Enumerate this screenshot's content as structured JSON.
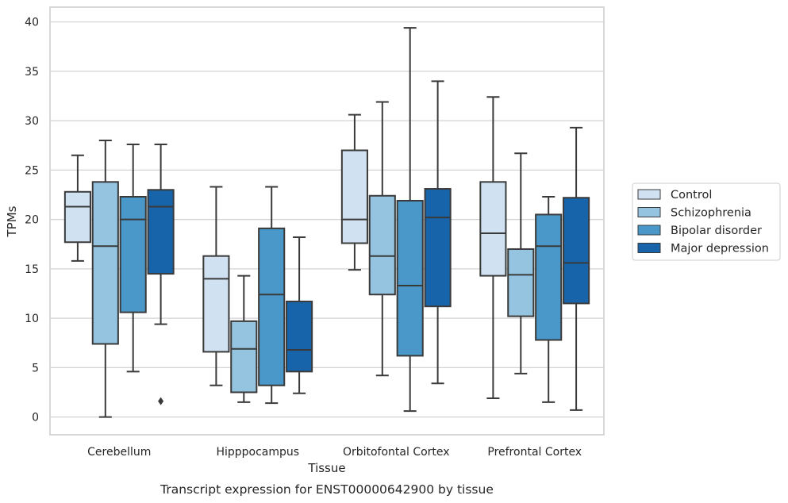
{
  "chart_data": {
    "type": "box",
    "caption": "Transcript expression for ENST00000642900 by tissue",
    "xlabel": "Tissue",
    "ylabel": "TPMs",
    "ylim": [
      -1.8,
      41.5
    ],
    "yticks": [
      0,
      5,
      10,
      15,
      20,
      25,
      30,
      35,
      40
    ],
    "grid": true,
    "legend_position": "right",
    "categories": [
      "Cerebellum",
      "Hipppocampus",
      "Orbitofontal Cortex",
      "Prefrontal Cortex"
    ],
    "series": [
      {
        "name": "Control",
        "color": "#d0e1f2",
        "boxes": [
          {
            "whisker_low": 15.8,
            "q1": 17.7,
            "median": 21.3,
            "q3": 22.8,
            "whisker_high": 26.5,
            "outliers": []
          },
          {
            "whisker_low": 3.2,
            "q1": 6.6,
            "median": 14.0,
            "q3": 16.3,
            "whisker_high": 23.3,
            "outliers": []
          },
          {
            "whisker_low": 14.9,
            "q1": 17.6,
            "median": 20.0,
            "q3": 27.0,
            "whisker_high": 30.6,
            "outliers": []
          },
          {
            "whisker_low": 1.9,
            "q1": 14.3,
            "median": 18.6,
            "q3": 23.8,
            "whisker_high": 32.4,
            "outliers": []
          }
        ]
      },
      {
        "name": "Schizophrenia",
        "color": "#94c4df",
        "boxes": [
          {
            "whisker_low": 0.0,
            "q1": 7.4,
            "median": 17.3,
            "q3": 23.8,
            "whisker_high": 28.0,
            "outliers": []
          },
          {
            "whisker_low": 1.5,
            "q1": 2.5,
            "median": 6.9,
            "q3": 9.7,
            "whisker_high": 14.3,
            "outliers": []
          },
          {
            "whisker_low": 4.2,
            "q1": 12.4,
            "median": 16.3,
            "q3": 22.4,
            "whisker_high": 31.9,
            "outliers": []
          },
          {
            "whisker_low": 4.4,
            "q1": 10.2,
            "median": 14.4,
            "q3": 17.0,
            "whisker_high": 26.7,
            "outliers": []
          }
        ]
      },
      {
        "name": "Bipolar disorder",
        "color": "#4a98c9",
        "boxes": [
          {
            "whisker_low": 4.6,
            "q1": 10.6,
            "median": 20.0,
            "q3": 22.3,
            "whisker_high": 27.6,
            "outliers": []
          },
          {
            "whisker_low": 1.4,
            "q1": 3.2,
            "median": 12.4,
            "q3": 19.1,
            "whisker_high": 23.3,
            "outliers": []
          },
          {
            "whisker_low": 0.6,
            "q1": 6.2,
            "median": 13.3,
            "q3": 21.9,
            "whisker_high": 39.4,
            "outliers": []
          },
          {
            "whisker_low": 1.5,
            "q1": 7.8,
            "median": 17.3,
            "q3": 20.5,
            "whisker_high": 22.3,
            "outliers": []
          }
        ]
      },
      {
        "name": "Major depression",
        "color": "#1764ab",
        "boxes": [
          {
            "whisker_low": 9.4,
            "q1": 14.5,
            "median": 21.3,
            "q3": 23.0,
            "whisker_high": 27.6,
            "outliers": [
              1.6
            ]
          },
          {
            "whisker_low": 2.4,
            "q1": 4.6,
            "median": 6.8,
            "q3": 11.7,
            "whisker_high": 18.2,
            "outliers": []
          },
          {
            "whisker_low": 3.4,
            "q1": 11.2,
            "median": 20.2,
            "q3": 23.1,
            "whisker_high": 34.0,
            "outliers": []
          },
          {
            "whisker_low": 0.7,
            "q1": 11.5,
            "median": 15.6,
            "q3": 22.2,
            "whisker_high": 29.3,
            "outliers": []
          }
        ]
      }
    ]
  }
}
